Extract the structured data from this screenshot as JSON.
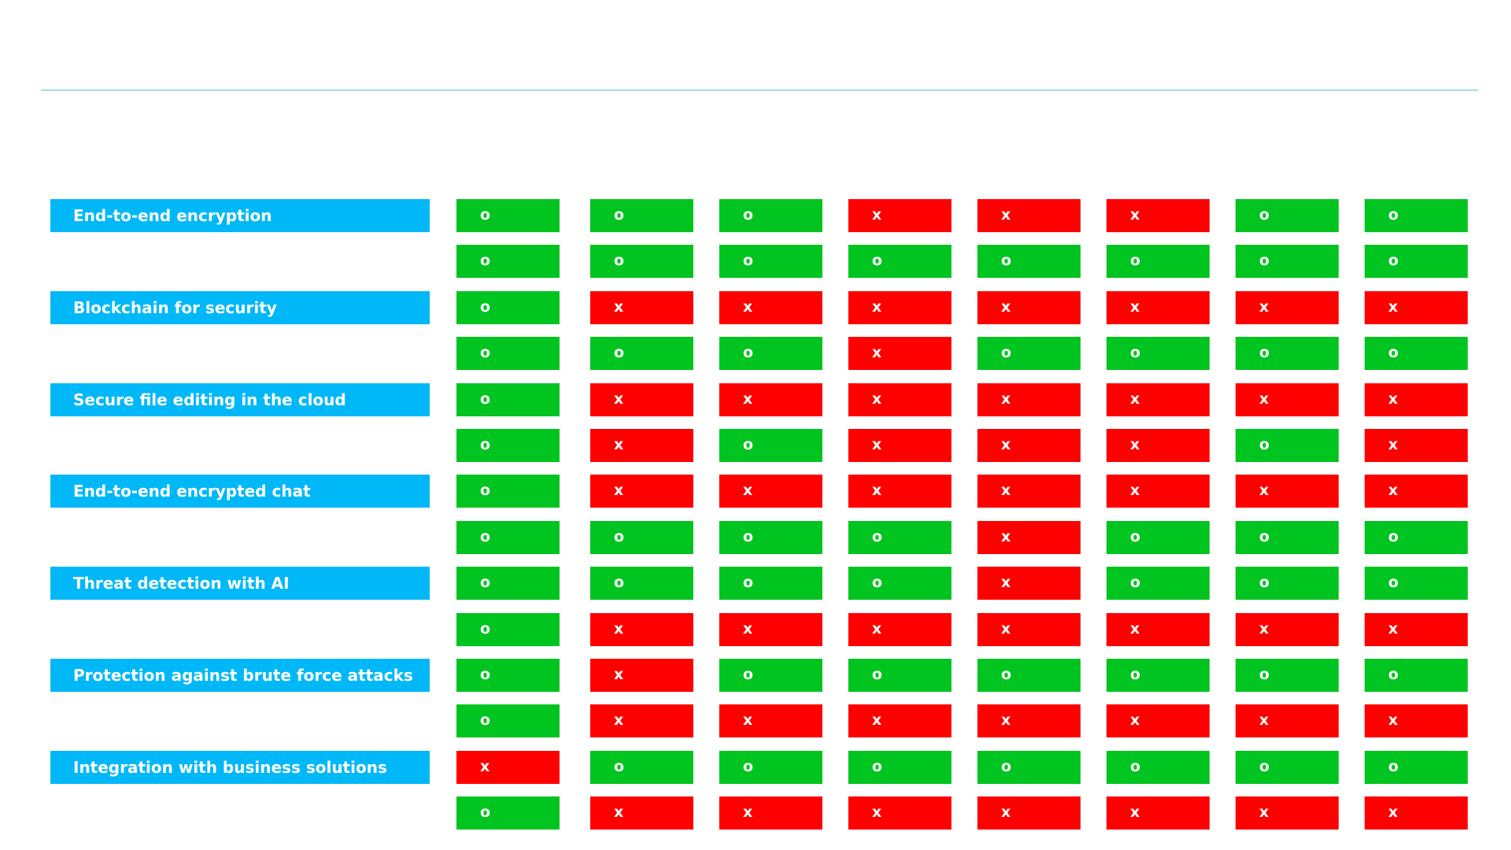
{
  "colors": {
    "label_bg": "#00b8f8",
    "yes": "#00c41f",
    "no": "#ff0000",
    "rule": "#4fc3c8"
  },
  "features": [
    "End-to-end encryption",
    "Blockchain for security",
    "Secure file editing in the cloud",
    "End-to-end encrypted chat",
    "Threat detection with AI",
    "Protection against brute force attacks",
    "Integration with business solutions"
  ],
  "rows": [
    [
      "o",
      "o",
      "o",
      "x",
      "x",
      "x",
      "o",
      "o"
    ],
    [
      "o",
      "o",
      "o",
      "o",
      "o",
      "o",
      "o",
      "o"
    ],
    [
      "o",
      "x",
      "x",
      "x",
      "x",
      "x",
      "x",
      "x"
    ],
    [
      "o",
      "o",
      "o",
      "x",
      "o",
      "o",
      "o",
      "o"
    ],
    [
      "o",
      "x",
      "x",
      "x",
      "x",
      "x",
      "x",
      "x"
    ],
    [
      "o",
      "x",
      "o",
      "x",
      "x",
      "x",
      "o",
      "x"
    ],
    [
      "o",
      "x",
      "x",
      "x",
      "x",
      "x",
      "x",
      "x"
    ],
    [
      "o",
      "o",
      "o",
      "o",
      "x",
      "o",
      "o",
      "o"
    ],
    [
      "o",
      "o",
      "o",
      "o",
      "x",
      "o",
      "o",
      "o"
    ],
    [
      "o",
      "x",
      "x",
      "x",
      "x",
      "x",
      "x",
      "x"
    ],
    [
      "o",
      "x",
      "o",
      "o",
      "o",
      "o",
      "o",
      "o"
    ],
    [
      "o",
      "x",
      "x",
      "x",
      "x",
      "x",
      "x",
      "x"
    ],
    [
      "x",
      "o",
      "o",
      "o",
      "o",
      "o",
      "o",
      "o"
    ],
    [
      "o",
      "x",
      "x",
      "x",
      "x",
      "x",
      "x",
      "x"
    ]
  ]
}
